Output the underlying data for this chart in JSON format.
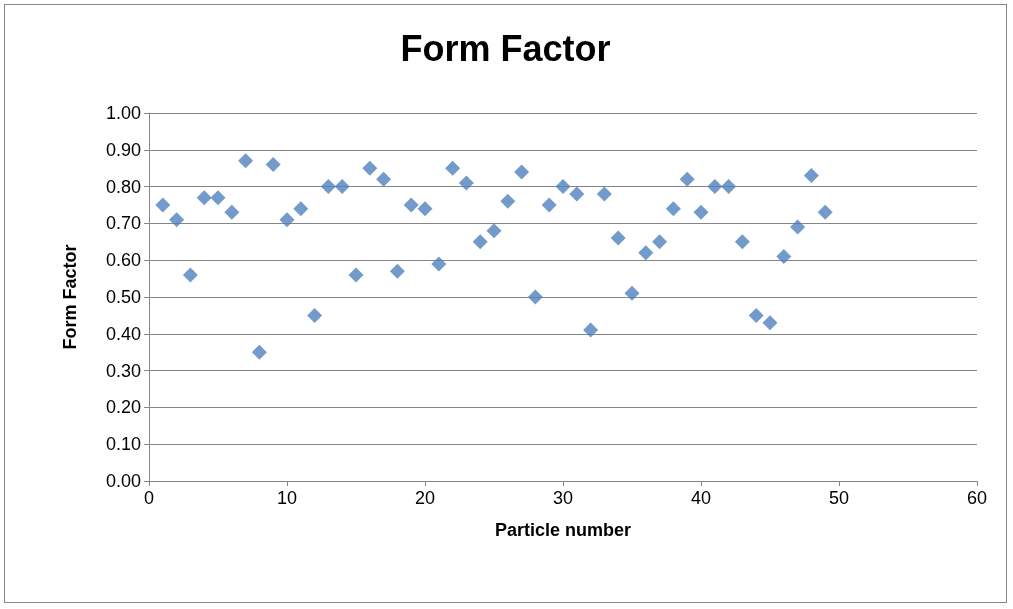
{
  "chart_data": {
    "type": "scatter",
    "title": "Form Factor",
    "xlabel": "Particle number",
    "ylabel": "Form Factor",
    "x": [
      1,
      2,
      3,
      4,
      5,
      6,
      7,
      8,
      9,
      10,
      11,
      12,
      13,
      14,
      15,
      16,
      17,
      18,
      19,
      20,
      21,
      22,
      23,
      24,
      25,
      26,
      27,
      28,
      29,
      30,
      31,
      32,
      33,
      34,
      35,
      36,
      37,
      38,
      39,
      40,
      41,
      42,
      43,
      44,
      45,
      46,
      47,
      48,
      49
    ],
    "series": [
      {
        "color": "#4f81bd",
        "values": [
          0.75,
          0.71,
          0.56,
          0.77,
          0.77,
          0.73,
          0.87,
          0.35,
          0.86,
          0.71,
          0.74,
          0.45,
          0.8,
          0.8,
          0.56,
          0.85,
          0.82,
          0.57,
          0.75,
          0.74,
          0.59,
          0.85,
          0.81,
          0.65,
          0.68,
          0.76,
          0.84,
          0.5,
          0.75,
          0.8,
          0.78,
          0.41,
          0.78,
          0.66,
          0.51,
          0.62,
          0.65,
          0.74,
          0.82,
          0.73,
          0.8,
          0.8,
          0.65,
          0.45,
          0.43,
          0.61,
          0.69,
          0.83,
          0.73
        ]
      }
    ],
    "xlim": [
      0,
      60
    ],
    "xticks": [
      0,
      10,
      20,
      30,
      40,
      50,
      60
    ],
    "ylim": [
      0,
      1
    ],
    "yticks": [
      {
        "value": 0,
        "label": "0.00"
      },
      {
        "value": 0.1,
        "label": "0.10"
      },
      {
        "value": 0.2,
        "label": "0.20"
      },
      {
        "value": 0.3,
        "label": "0.30"
      },
      {
        "value": 0.4,
        "label": "0.40"
      },
      {
        "value": 0.5,
        "label": "0.50"
      },
      {
        "value": 0.6,
        "label": "0.60"
      },
      {
        "value": 0.7,
        "label": "0.70"
      },
      {
        "value": 0.8,
        "label": "0.80"
      },
      {
        "value": 0.9,
        "label": "0.90"
      },
      {
        "value": 1,
        "label": "1.00"
      }
    ],
    "grid": "y",
    "marker": "diamond"
  }
}
